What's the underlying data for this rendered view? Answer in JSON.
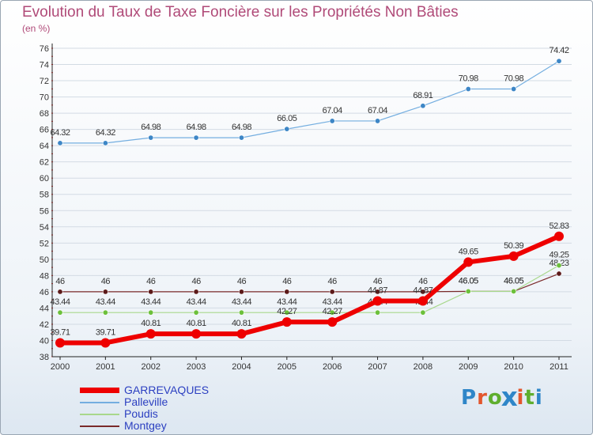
{
  "title": "Evolution du Taux de Taxe Foncière sur les Propriétés Non Bâties",
  "unit_label": "(en %)",
  "logo": {
    "text": "Proxiti",
    "colors": [
      "#2f86c8",
      "#e3562d",
      "#5fae2e",
      "#2f86c8",
      "#e3562d",
      "#5fae2e",
      "#2f86c8"
    ]
  },
  "chart_data": {
    "type": "line",
    "title": "Evolution du Taux de Taxe Foncière sur les Propriétés Non Bâties",
    "ylabel": "(en %)",
    "xlabel": "",
    "categories": [
      "2000",
      "2001",
      "2002",
      "2003",
      "2004",
      "2005",
      "2006",
      "2007",
      "2008",
      "2009",
      "2010",
      "2011"
    ],
    "ylim": [
      38,
      76
    ],
    "yticks": [
      38,
      40,
      42,
      44,
      46,
      48,
      50,
      52,
      54,
      56,
      58,
      60,
      62,
      64,
      66,
      68,
      70,
      72,
      74,
      76
    ],
    "grid": "horizontal",
    "series": [
      {
        "name": "Montgey",
        "color": "#7a2a2a",
        "marker": "#5c1a1a",
        "width": 1.2,
        "values": [
          46,
          46,
          46,
          46,
          46,
          46,
          46,
          46,
          46,
          46.05,
          46.05,
          48.23
        ],
        "labels": [
          "46",
          "46",
          "46",
          "46",
          "46",
          "46",
          "46",
          "46",
          "46",
          "46.05",
          "46.05",
          "48.23"
        ]
      },
      {
        "name": "Poudis",
        "color": "#a8d88c",
        "marker": "#6cc03b",
        "width": 1.2,
        "values": [
          43.44,
          43.44,
          43.44,
          43.44,
          43.44,
          43.44,
          43.44,
          43.44,
          43.44,
          46.05,
          46.05,
          49.25
        ],
        "labels": [
          "43.44",
          "43.44",
          "43.44",
          "43.44",
          "43.44",
          "43.44",
          "43.44",
          "43.44",
          "43.44",
          "46.05",
          "46.05",
          "49.25"
        ]
      },
      {
        "name": "Palleville",
        "color": "#74aee0",
        "marker": "#3d86c6",
        "width": 1.2,
        "values": [
          64.32,
          64.32,
          64.98,
          64.98,
          64.98,
          66.05,
          67.04,
          67.04,
          68.91,
          70.98,
          70.98,
          74.42
        ],
        "labels": [
          "64.32",
          "64.32",
          "64.98",
          "64.98",
          "64.98",
          "66.05",
          "67.04",
          "67.04",
          "68.91",
          "70.98",
          "70.98",
          "74.42"
        ]
      },
      {
        "name": "GARREVAQUES",
        "color": "#ee0000",
        "marker": "#ee0000",
        "width": 6,
        "values": [
          39.71,
          39.71,
          40.81,
          40.81,
          40.81,
          42.27,
          42.27,
          44.87,
          44.87,
          49.65,
          50.39,
          52.83
        ],
        "labels": [
          "39.71",
          "39.71",
          "40.81",
          "40.81",
          "40.81",
          "42.27",
          "42.27",
          "44.87",
          "44.87",
          "49.65",
          "50.39",
          "52.83"
        ]
      }
    ],
    "legend": [
      {
        "name": "GARREVAQUES",
        "color": "#ee0000",
        "thick": true
      },
      {
        "name": "Palleville",
        "color": "#74aee0",
        "thick": false
      },
      {
        "name": "Poudis",
        "color": "#a8d88c",
        "thick": false
      },
      {
        "name": "Montgey",
        "color": "#7a2a2a",
        "thick": false
      }
    ]
  }
}
